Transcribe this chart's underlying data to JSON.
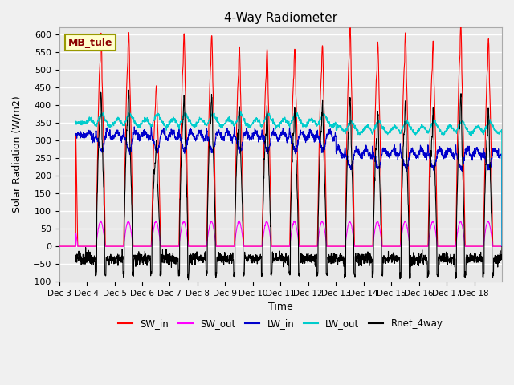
{
  "title": "4-Way Radiometer",
  "xlabel": "Time",
  "ylabel": "Solar Radiation (W/m2)",
  "station_label": "MB_tule",
  "ylim": [
    -100,
    620
  ],
  "yticks": [
    -100,
    -50,
    0,
    50,
    100,
    150,
    200,
    250,
    300,
    350,
    400,
    450,
    500,
    550,
    600
  ],
  "xtick_labels": [
    "Dec 3",
    "Dec 4",
    "Dec 5",
    "Dec 6",
    "Dec 7",
    "Dec 8",
    "Dec 9",
    "Dec 10",
    "Dec 11",
    "Dec 12",
    "Dec 13",
    "Dec 14",
    "Dec 15",
    "Dec 16",
    "Dec 17",
    "Dec 18"
  ],
  "colors": {
    "SW_in": "#ff0000",
    "SW_out": "#ff00ff",
    "LW_in": "#0000cc",
    "LW_out": "#00cccc",
    "Rnet_4way": "#000000"
  },
  "legend_labels": [
    "SW_in",
    "SW_out",
    "LW_in",
    "LW_out",
    "Rnet_4way"
  ],
  "background_color": "#e8e8e8",
  "grid_color": "#ffffff",
  "n_days": 16,
  "points_per_day": 144
}
